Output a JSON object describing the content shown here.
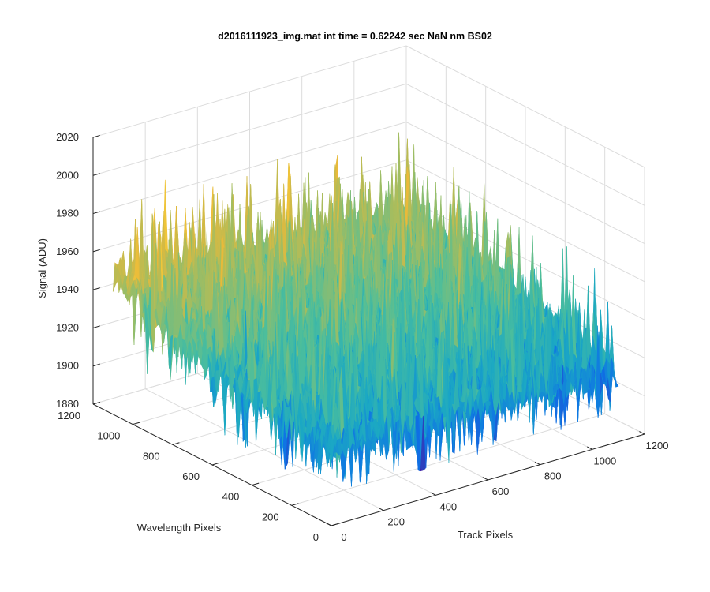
{
  "chart_data": {
    "type": "surface",
    "title": "d2016111923_img.mat int time = 0.62242 sec  NaN nm BS02",
    "xlabel": "Track Pixels",
    "ylabel": "Wavelength Pixels",
    "zlabel": "Signal (ADU)",
    "xlim": [
      0,
      1200
    ],
    "ylim": [
      0,
      1200
    ],
    "zlim": [
      1880,
      2020
    ],
    "xticks": [
      "0",
      "200",
      "400",
      "600",
      "800",
      "1000",
      "1200"
    ],
    "yticks": [
      "0",
      "200",
      "400",
      "600",
      "800",
      "1000",
      "1200"
    ],
    "zticks": [
      "1880",
      "1900",
      "1920",
      "1940",
      "1960",
      "1980",
      "2000",
      "2020"
    ],
    "data_extent": {
      "x": [
        0,
        1100
      ],
      "y": [
        0,
        1100
      ]
    },
    "surface_level_estimates": {
      "x": [
        0,
        550,
        1100
      ],
      "y": [
        0,
        550,
        1100
      ],
      "z_mean": [
        [
          1920,
          1930,
          1952
        ],
        [
          1920,
          1932,
          1945
        ],
        [
          1915,
          1935,
          1942
        ]
      ],
      "noise_band": [
        1895,
        1995
      ]
    },
    "grid": true,
    "colormap": "parula",
    "colormap_colors": [
      "#3e26a8",
      "#0e72e6",
      "#1ba8c4",
      "#4cbe9c",
      "#a0bd62",
      "#e8b93a",
      "#f9d33a"
    ]
  }
}
